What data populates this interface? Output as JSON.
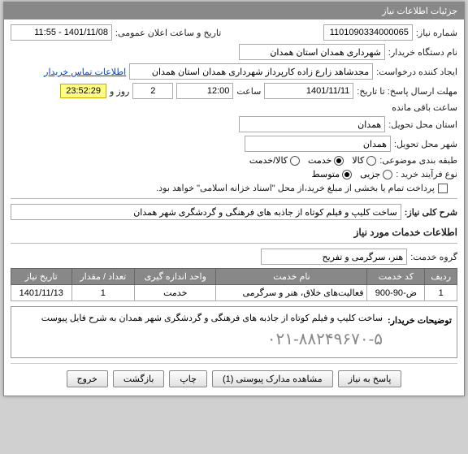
{
  "window": {
    "title": "جزئیات اطلاعات نیاز"
  },
  "fields": {
    "need_no_label": "شماره نیاز:",
    "need_no": "1101090334000065",
    "announce_label": "تاریخ و ساعت اعلان عمومی:",
    "announce": "1401/11/08 - 11:55",
    "buyer_label": "نام دستگاه خریدار:",
    "buyer": "شهرداری همدان استان همدان",
    "requester_label": "ایجاد کننده درخواست:",
    "requester": "مجدشاهد زارع زاده کارپرداز شهرداری همدان استان همدان",
    "contact_link": "اطلاعات تماس خریدار",
    "deadline_label": "مهلت ارسال پاسخ:  تا تاریخ:",
    "deadline_date": "1401/11/11",
    "time_label": "ساعت",
    "deadline_time": "12:00",
    "day_label": "روز و",
    "remain_days": "2",
    "remain_time": "23:52:29",
    "remain_label": "ساعت باقی مانده",
    "province_label": "استان محل تحویل:",
    "province": "همدان",
    "city_label": "شهر محل تحویل:",
    "city": "همدان",
    "pkg_label": "طبقه بندی موضوعی:",
    "goods": "کالا",
    "service": "خدمت",
    "goods_service": "کالا/خدمت",
    "buy_type_label": "نوع فرآیند خرید :",
    "partial": "جزیی",
    "medium": "متوسط",
    "pay_note": "پرداخت تمام یا بخشی از مبلغ خرید،از محل \"اسناد خزانه اسلامی\" خواهد بود."
  },
  "desc": {
    "label": "شرح کلی نیاز:",
    "text": "ساخت کلیپ و فیلم کوتاه از جاذبه های فرهنگی و گردشگری شهر همدان"
  },
  "services_title": "اطلاعات خدمات مورد نیاز",
  "group": {
    "label": "گروه خدمت:",
    "value": "هنر، سرگرمی و تفریح"
  },
  "table": {
    "headers": [
      "ردیف",
      "کد خدمت",
      "نام خدمت",
      "واحد اندازه گیری",
      "تعداد / مقدار",
      "تاریخ نیاز"
    ],
    "row": [
      "1",
      "ض-90-900",
      "فعالیت‌های خلاق، هنر و سرگرمی",
      "خدمت",
      "1",
      "1401/11/13"
    ]
  },
  "buyer_note": {
    "label": "توضیحات خریدار:",
    "text": "ساخت کلیپ و فیلم کوتاه از جاذبه های فرهنگی و گردشگری شهر همدان به شرح فایل پیوست",
    "phone": "۰۲۱-۸۸۲۴۹۶۷۰-۵"
  },
  "buttons": {
    "reply": "پاسخ به نیاز",
    "attachments": "مشاهده مدارک پیوستی (1)",
    "print": "چاپ",
    "back": "بازگشت",
    "exit": "خروج"
  }
}
